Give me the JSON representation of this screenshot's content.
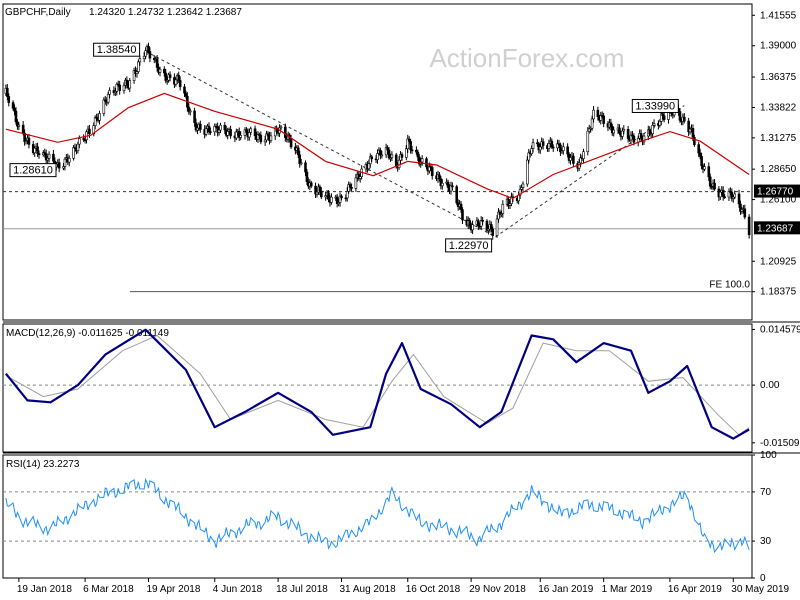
{
  "header": {
    "symbol": "GBPCHF,Daily",
    "ohlc": "1.24320 1.24732 1.23642 1.23687",
    "watermark": "ActionForex.com"
  },
  "chart_data": [
    {
      "type": "candlestick",
      "panel": "price",
      "x": [
        "19 Jan 2018",
        "6 Mar 2018",
        "19 Apr 2018",
        "4 Jun 2018",
        "18 Jul 2018",
        "31 Aug 2018",
        "16 Oct 2018",
        "29 Nov 2018",
        "16 Jan 2019",
        "1 Mar 2019",
        "16 Apr 2019",
        "30 May 2019"
      ],
      "ylim": [
        1.16,
        1.425
      ],
      "y_ticks": [
        "1.41555",
        "1.39000",
        "1.36375",
        "1.33822",
        "1.31275",
        "1.28650",
        "1.26100",
        "1.23687",
        "1.20925",
        "1.18375"
      ],
      "current_price": "1.23687",
      "price_path": [
        {
          "date": "2018-01-10",
          "value": 1.35
        },
        {
          "date": "2018-01-19",
          "value": 1.32
        },
        {
          "date": "2018-02-05",
          "value": 1.296
        },
        {
          "date": "2018-02-15",
          "value": 1.29
        },
        {
          "date": "2018-02-25",
          "value": 1.3
        },
        {
          "date": "2018-03-05",
          "value": 1.31
        },
        {
          "date": "2018-03-20",
          "value": 1.345
        },
        {
          "date": "2018-04-05",
          "value": 1.36
        },
        {
          "date": "2018-04-17",
          "value": 1.3854
        },
        {
          "date": "2018-04-28",
          "value": 1.368
        },
        {
          "date": "2018-05-10",
          "value": 1.36
        },
        {
          "date": "2018-05-20",
          "value": 1.325
        },
        {
          "date": "2018-06-04",
          "value": 1.318
        },
        {
          "date": "2018-06-20",
          "value": 1.318
        },
        {
          "date": "2018-07-05",
          "value": 1.312
        },
        {
          "date": "2018-07-18",
          "value": 1.32
        },
        {
          "date": "2018-08-01",
          "value": 1.3
        },
        {
          "date": "2018-08-10",
          "value": 1.27
        },
        {
          "date": "2018-08-20",
          "value": 1.262
        },
        {
          "date": "2018-08-31",
          "value": 1.263
        },
        {
          "date": "2018-09-10",
          "value": 1.275
        },
        {
          "date": "2018-09-22",
          "value": 1.3
        },
        {
          "date": "2018-10-01",
          "value": 1.3
        },
        {
          "date": "2018-10-08",
          "value": 1.288
        },
        {
          "date": "2018-10-16",
          "value": 1.312
        },
        {
          "date": "2018-10-25",
          "value": 1.29
        },
        {
          "date": "2018-11-05",
          "value": 1.282
        },
        {
          "date": "2018-11-15",
          "value": 1.27
        },
        {
          "date": "2018-11-25",
          "value": 1.24
        },
        {
          "date": "2018-12-05",
          "value": 1.243
        },
        {
          "date": "2018-12-14",
          "value": 1.232
        },
        {
          "date": "2018-12-22",
          "value": 1.26
        },
        {
          "date": "2019-01-02",
          "value": 1.265
        },
        {
          "date": "2019-01-10",
          "value": 1.305
        },
        {
          "date": "2019-01-20",
          "value": 1.31
        },
        {
          "date": "2019-02-01",
          "value": 1.3
        },
        {
          "date": "2019-02-12",
          "value": 1.292
        },
        {
          "date": "2019-02-22",
          "value": 1.33
        },
        {
          "date": "2019-03-01",
          "value": 1.328
        },
        {
          "date": "2019-03-10",
          "value": 1.32
        },
        {
          "date": "2019-03-20",
          "value": 1.31
        },
        {
          "date": "2019-03-28",
          "value": 1.315
        },
        {
          "date": "2019-04-08",
          "value": 1.325
        },
        {
          "date": "2019-04-20",
          "value": 1.338
        },
        {
          "date": "2019-04-30",
          "value": 1.32
        },
        {
          "date": "2019-05-07",
          "value": 1.292
        },
        {
          "date": "2019-05-15",
          "value": 1.275
        },
        {
          "date": "2019-05-23",
          "value": 1.265
        },
        {
          "date": "2019-05-30",
          "value": 1.262
        },
        {
          "date": "2019-06-07",
          "value": 1.25
        },
        {
          "date": "2019-06-10",
          "value": 1.237
        }
      ],
      "moving_average": [
        {
          "date": "2018-01-10",
          "value": 1.32
        },
        {
          "date": "2018-02-15",
          "value": 1.309
        },
        {
          "date": "2018-03-10",
          "value": 1.315
        },
        {
          "date": "2018-04-05",
          "value": 1.338
        },
        {
          "date": "2018-04-30",
          "value": 1.35
        },
        {
          "date": "2018-06-04",
          "value": 1.335
        },
        {
          "date": "2018-07-18",
          "value": 1.32
        },
        {
          "date": "2018-08-20",
          "value": 1.293
        },
        {
          "date": "2018-09-22",
          "value": 1.281
        },
        {
          "date": "2018-10-16",
          "value": 1.293
        },
        {
          "date": "2018-11-05",
          "value": 1.29
        },
        {
          "date": "2018-12-10",
          "value": 1.27
        },
        {
          "date": "2018-12-28",
          "value": 1.262
        },
        {
          "date": "2019-01-25",
          "value": 1.282
        },
        {
          "date": "2019-03-01",
          "value": 1.298
        },
        {
          "date": "2019-03-25",
          "value": 1.309
        },
        {
          "date": "2019-04-16",
          "value": 1.318
        },
        {
          "date": "2019-05-07",
          "value": 1.31
        },
        {
          "date": "2019-06-10",
          "value": 1.282
        }
      ],
      "trend_lines": [
        {
          "from": {
            "date": "2018-04-17",
            "value": 1.3854
          },
          "to": {
            "date": "2018-12-16",
            "value": 1.2297
          }
        },
        {
          "from": {
            "date": "2018-12-16",
            "value": 1.2297
          },
          "to": {
            "date": "2019-04-26",
            "value": 1.3399
          }
        }
      ],
      "horizontal_levels": [
        {
          "value": 1.2677,
          "style": "dashed",
          "label": "1.26770"
        },
        {
          "value": 1.2365,
          "style": "solid"
        },
        {
          "value": 1.1838,
          "style": "solid",
          "label": "FE 100.0"
        }
      ],
      "annotations": [
        {
          "text": "1.38540",
          "date": "2018-04-17",
          "value": 1.3854
        },
        {
          "text": "1.28610",
          "date": "2018-02-10",
          "value": 1.2861
        },
        {
          "text": "1.22970",
          "date": "2018-12-16",
          "value": 1.2297
        },
        {
          "text": "1.33990",
          "date": "2019-04-26",
          "value": 1.3399
        }
      ],
      "colors": {
        "price": "#000000",
        "moving_average": "#cc0000",
        "trend": "#000000"
      }
    },
    {
      "type": "line",
      "panel": "indicator",
      "title": "MACD(12,26,9) -0.011625 -0.011149",
      "ylim": [
        -0.0175,
        0.016
      ],
      "y_ticks": [
        "0.014579",
        "0.00",
        "-0.015096"
      ],
      "macd": [
        {
          "date": "2018-01-10",
          "value": 0.003
        },
        {
          "date": "2018-01-25",
          "value": -0.004
        },
        {
          "date": "2018-02-10",
          "value": -0.0045
        },
        {
          "date": "2018-03-01",
          "value": 0.0
        },
        {
          "date": "2018-03-20",
          "value": 0.008
        },
        {
          "date": "2018-04-17",
          "value": 0.0145
        },
        {
          "date": "2018-05-15",
          "value": 0.004
        },
        {
          "date": "2018-06-04",
          "value": -0.011
        },
        {
          "date": "2018-06-25",
          "value": -0.007
        },
        {
          "date": "2018-07-18",
          "value": -0.002
        },
        {
          "date": "2018-08-10",
          "value": -0.007
        },
        {
          "date": "2018-08-25",
          "value": -0.013
        },
        {
          "date": "2018-09-20",
          "value": -0.011
        },
        {
          "date": "2018-10-01",
          "value": 0.003
        },
        {
          "date": "2018-10-12",
          "value": 0.011
        },
        {
          "date": "2018-10-25",
          "value": -0.001
        },
        {
          "date": "2018-11-15",
          "value": -0.005
        },
        {
          "date": "2018-12-05",
          "value": -0.011
        },
        {
          "date": "2018-12-20",
          "value": -0.007
        },
        {
          "date": "2019-01-10",
          "value": 0.013
        },
        {
          "date": "2019-01-25",
          "value": 0.012
        },
        {
          "date": "2019-02-10",
          "value": 0.006
        },
        {
          "date": "2019-03-01",
          "value": 0.011
        },
        {
          "date": "2019-03-20",
          "value": 0.009
        },
        {
          "date": "2019-04-01",
          "value": -0.002
        },
        {
          "date": "2019-04-16",
          "value": 0.001
        },
        {
          "date": "2019-04-28",
          "value": 0.005
        },
        {
          "date": "2019-05-15",
          "value": -0.011
        },
        {
          "date": "2019-05-30",
          "value": -0.014
        },
        {
          "date": "2019-06-10",
          "value": -0.0116
        }
      ],
      "signal": [
        {
          "date": "2018-01-10",
          "value": 0.0025
        },
        {
          "date": "2018-02-05",
          "value": -0.003
        },
        {
          "date": "2018-03-01",
          "value": -0.001
        },
        {
          "date": "2018-04-01",
          "value": 0.009
        },
        {
          "date": "2018-04-25",
          "value": 0.013
        },
        {
          "date": "2018-05-25",
          "value": 0.003
        },
        {
          "date": "2018-06-15",
          "value": -0.009
        },
        {
          "date": "2018-07-18",
          "value": -0.004
        },
        {
          "date": "2018-08-20",
          "value": -0.009
        },
        {
          "date": "2018-09-15",
          "value": -0.011
        },
        {
          "date": "2018-10-05",
          "value": 0.001
        },
        {
          "date": "2018-10-20",
          "value": 0.008
        },
        {
          "date": "2018-11-10",
          "value": -0.003
        },
        {
          "date": "2018-12-10",
          "value": -0.01
        },
        {
          "date": "2018-12-28",
          "value": -0.006
        },
        {
          "date": "2019-01-18",
          "value": 0.011
        },
        {
          "date": "2019-02-10",
          "value": 0.009
        },
        {
          "date": "2019-03-05",
          "value": 0.009
        },
        {
          "date": "2019-04-01",
          "value": 0.001
        },
        {
          "date": "2019-04-25",
          "value": 0.002
        },
        {
          "date": "2019-05-20",
          "value": -0.008
        },
        {
          "date": "2019-06-03",
          "value": -0.013
        },
        {
          "date": "2019-06-10",
          "value": -0.0111
        }
      ],
      "colors": {
        "macd": "#000080",
        "signal": "#a0a0a0"
      }
    },
    {
      "type": "line",
      "panel": "indicator",
      "title": "RSI(14) 23.2273",
      "ylim": [
        0,
        100
      ],
      "y_ticks": [
        "100",
        "70",
        "30",
        "0"
      ],
      "levels": [
        70,
        30
      ],
      "rsi": [
        {
          "date": "2018-01-10",
          "value": 60
        },
        {
          "date": "2018-01-25",
          "value": 45
        },
        {
          "date": "2018-02-10",
          "value": 40
        },
        {
          "date": "2018-03-01",
          "value": 55
        },
        {
          "date": "2018-03-20",
          "value": 68
        },
        {
          "date": "2018-04-17",
          "value": 78
        },
        {
          "date": "2018-05-10",
          "value": 55
        },
        {
          "date": "2018-06-04",
          "value": 30
        },
        {
          "date": "2018-06-25",
          "value": 42
        },
        {
          "date": "2018-07-18",
          "value": 50
        },
        {
          "date": "2018-08-10",
          "value": 33
        },
        {
          "date": "2018-08-25",
          "value": 28
        },
        {
          "date": "2018-09-20",
          "value": 45
        },
        {
          "date": "2018-10-05",
          "value": 68
        },
        {
          "date": "2018-10-25",
          "value": 45
        },
        {
          "date": "2018-11-15",
          "value": 40
        },
        {
          "date": "2018-12-05",
          "value": 32
        },
        {
          "date": "2018-12-20",
          "value": 45
        },
        {
          "date": "2019-01-10",
          "value": 70
        },
        {
          "date": "2019-01-30",
          "value": 52
        },
        {
          "date": "2019-02-20",
          "value": 60
        },
        {
          "date": "2019-03-10",
          "value": 55
        },
        {
          "date": "2019-03-28",
          "value": 46
        },
        {
          "date": "2019-04-20",
          "value": 62
        },
        {
          "date": "2019-04-28",
          "value": 68
        },
        {
          "date": "2019-05-10",
          "value": 30
        },
        {
          "date": "2019-05-25",
          "value": 25
        },
        {
          "date": "2019-06-05",
          "value": 32
        },
        {
          "date": "2019-06-10",
          "value": 23.2
        }
      ],
      "colors": {
        "rsi": "#1e90ff"
      }
    }
  ]
}
